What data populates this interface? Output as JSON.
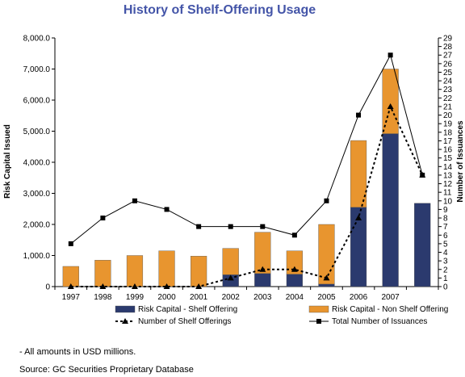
{
  "chart_data": {
    "type": "bar",
    "title": "History of Shelf-Offering Usage",
    "ylabel": "Risk Capital Issued",
    "y2label": "Number of Issuances",
    "categories": [
      "1997",
      "1998",
      "1999",
      "2000",
      "2001",
      "2002",
      "2003",
      "2004",
      "2005",
      "2006",
      "2007",
      ""
    ],
    "ylim": [
      0,
      8000
    ],
    "y2lim": [
      0,
      29
    ],
    "yticks": [
      "0",
      "1,000.0",
      "2,000.0",
      "3,000.0",
      "4,000.0",
      "5,000.0",
      "6,000.0",
      "7,000.0",
      "8,000.0"
    ],
    "y2ticks": [
      "0",
      "1",
      "2",
      "3",
      "4",
      "5",
      "6",
      "7",
      "8",
      "9",
      "10",
      "11",
      "12",
      "13",
      "14",
      "15",
      "16",
      "17",
      "18",
      "19",
      "20",
      "21",
      "22",
      "23",
      "24",
      "25",
      "26",
      "27",
      "28",
      "29"
    ],
    "stacked": true,
    "grid": false,
    "legend_placement": "bottom",
    "series": [
      {
        "name": "Risk Capital - Shelf Offering",
        "kind": "bar",
        "color": "#2b3a6e",
        "values": [
          0,
          0,
          0,
          0,
          0,
          380,
          420,
          400,
          80,
          2550,
          4920,
          2680
        ]
      },
      {
        "name": "Risk Capital - Non Shelf Offering",
        "kind": "bar",
        "color": "#e8952f",
        "values": [
          650,
          850,
          1000,
          1150,
          980,
          850,
          1330,
          750,
          1920,
          2150,
          2080,
          0
        ]
      },
      {
        "name": "Number of Shelf Offerings",
        "kind": "line",
        "style": "dotted",
        "marker": "triangle",
        "color": "#000000",
        "axis": "right",
        "values": [
          0,
          0,
          0,
          0,
          0,
          1,
          2,
          2,
          1,
          8,
          21,
          13
        ]
      },
      {
        "name": "Total Number of Issuances",
        "kind": "line",
        "style": "solid",
        "marker": "square",
        "color": "#000000",
        "axis": "right",
        "values": [
          5,
          8,
          10,
          9,
          7,
          7,
          7,
          6,
          10,
          20,
          27,
          13
        ]
      }
    ]
  },
  "notes": {
    "amounts": "- All amounts in USD millions.",
    "source": "Source: GC Securities Proprietary Database"
  }
}
